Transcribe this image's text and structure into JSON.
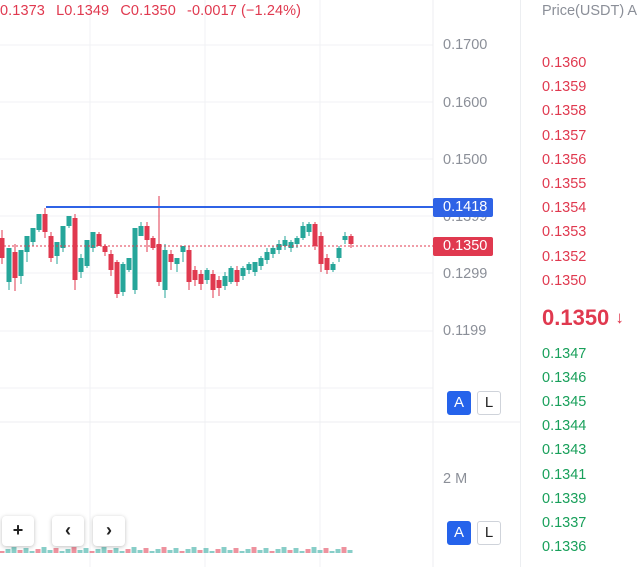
{
  "ohlc": {
    "high": "0.1373",
    "low": "L0.1349",
    "close": "C0.1350",
    "change": "-0.0017 (−1.24%)"
  },
  "price_axis": [
    "0.1700",
    "0.1600",
    "0.1500",
    "0.1399",
    "0.1299",
    "0.1199"
  ],
  "volume_axis_label": "2 M",
  "tags": {
    "line_price": "0.1418",
    "current_price": "0.1350"
  },
  "controls": {
    "auto_scale": "A",
    "log_scale": "L",
    "zoom_in": "+",
    "scroll_left": "‹",
    "scroll_right": "›"
  },
  "colors": {
    "up": "#26a69a",
    "down": "#e0394f",
    "line": "#2f63e6",
    "accent": "#2563eb"
  },
  "order_book": {
    "header": "Price(USDT)  A",
    "asks": [
      "0.1360",
      "0.1359",
      "0.1358",
      "0.1357",
      "0.1356",
      "0.1355",
      "0.1354",
      "0.1353",
      "0.1352",
      "0.1350"
    ],
    "last_price": "0.1350",
    "last_direction": "down-arrow-icon",
    "bids": [
      "0.1347",
      "0.1346",
      "0.1345",
      "0.1344",
      "0.1343",
      "0.1341",
      "0.1339",
      "0.1337",
      "0.1336"
    ]
  }
}
